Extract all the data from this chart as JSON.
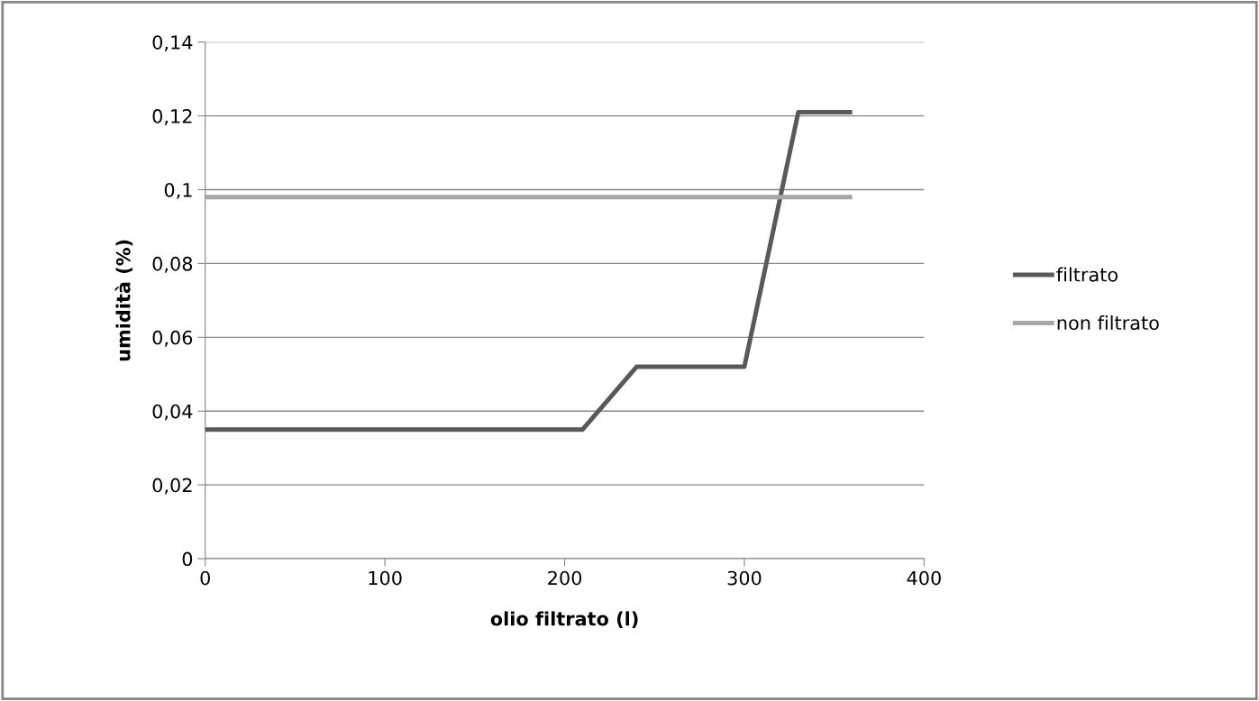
{
  "chart_data": {
    "type": "line",
    "xlabel": "olio filtrato (l)",
    "ylabel": "umidità (%)",
    "xlim": [
      0,
      400
    ],
    "xticks": [
      0,
      100,
      200,
      300,
      400
    ],
    "ylim": [
      0,
      0.14
    ],
    "yticks": [
      {
        "value": 0,
        "label": "0"
      },
      {
        "value": 0.02,
        "label": "0,02"
      },
      {
        "value": 0.04,
        "label": "0,04"
      },
      {
        "value": 0.06,
        "label": "0,06"
      },
      {
        "value": 0.08,
        "label": "0,08"
      },
      {
        "value": 0.1,
        "label": "0,1"
      },
      {
        "value": 0.12,
        "label": "0,12"
      },
      {
        "value": 0.14,
        "label": "0,14"
      }
    ],
    "grid": "y",
    "legend": "right",
    "marker": "none",
    "line_style": "solid",
    "series": [
      {
        "name": "filtrato",
        "color": "#595959",
        "x": [
          0,
          210,
          240,
          300,
          330,
          360
        ],
        "values": [
          0.035,
          0.035,
          0.052,
          0.052,
          0.121,
          0.121
        ]
      },
      {
        "name": "non filtrato",
        "color": "#a6a6a6",
        "x": [
          0,
          360
        ],
        "values": [
          0.098,
          0.098
        ]
      }
    ]
  }
}
